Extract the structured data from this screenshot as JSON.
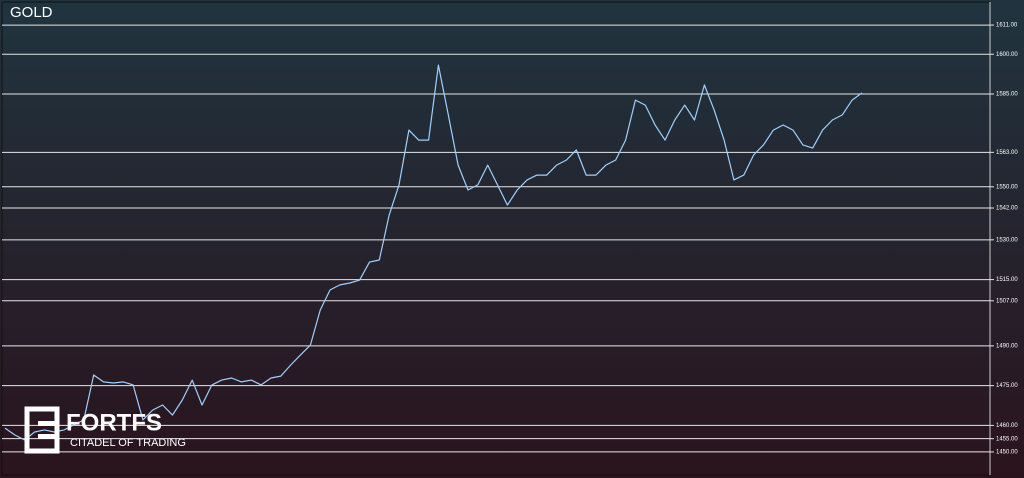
{
  "chart_data": {
    "type": "line",
    "title": "GOLD",
    "series": [
      {
        "name": "GOLD",
        "color": "#9fd0ff",
        "values": [
          1459.0,
          1456.4,
          1454.5,
          1457.5,
          1458.3,
          1457.5,
          1458.3,
          1460.2,
          1462.1,
          1479.0,
          1476.4,
          1476.0,
          1476.4,
          1475.3,
          1462.1,
          1465.8,
          1467.7,
          1463.9,
          1469.6,
          1477.1,
          1467.7,
          1475.3,
          1477.1,
          1477.9,
          1476.4,
          1477.1,
          1475.3,
          1477.9,
          1478.6,
          1482.8,
          1486.6,
          1490.3,
          1503.5,
          1511.1,
          1513.0,
          1513.7,
          1514.8,
          1521.6,
          1522.4,
          1539.4,
          1550.7,
          1571.4,
          1567.6,
          1567.6,
          1595.9,
          1577.1,
          1558.2,
          1548.8,
          1550.7,
          1558.2,
          1550.7,
          1543.1,
          1548.8,
          1552.6,
          1554.4,
          1554.4,
          1558.2,
          1560.1,
          1563.9,
          1554.4,
          1554.4,
          1558.2,
          1560.1,
          1567.6,
          1582.7,
          1580.8,
          1573.3,
          1567.6,
          1575.2,
          1580.8,
          1575.2,
          1588.4,
          1578.9,
          1567.6,
          1552.6,
          1554.4,
          1562.0,
          1565.8,
          1571.4,
          1573.3,
          1571.4,
          1565.8,
          1564.6,
          1571.4,
          1575.2,
          1577.1,
          1582.7,
          1585.4
        ]
      }
    ],
    "ylim": [
      1441.3,
      1619.7
    ],
    "yticks": [
      {
        "value": 1611,
        "label": "1611.00"
      },
      {
        "value": 1600,
        "label": "1600.00"
      },
      {
        "value": 1585,
        "label": "1585.00"
      },
      {
        "value": 1563,
        "label": "1563.00"
      },
      {
        "value": 1550,
        "label": "1550.00"
      },
      {
        "value": 1542,
        "label": "1542.00"
      },
      {
        "value": 1530,
        "label": "1530.00"
      },
      {
        "value": 1515,
        "label": "1515.00"
      },
      {
        "value": 1507,
        "label": "1507.00"
      },
      {
        "value": 1490,
        "label": "1490.00"
      },
      {
        "value": 1475,
        "label": "1475.00"
      },
      {
        "value": 1460,
        "label": "1460.00"
      },
      {
        "value": 1455,
        "label": "1455.00"
      },
      {
        "value": 1450,
        "label": "1450.00"
      }
    ],
    "grid": true
  },
  "logo": {
    "name": "FORTFS",
    "tagline": "CITADEL OF TRADING"
  }
}
